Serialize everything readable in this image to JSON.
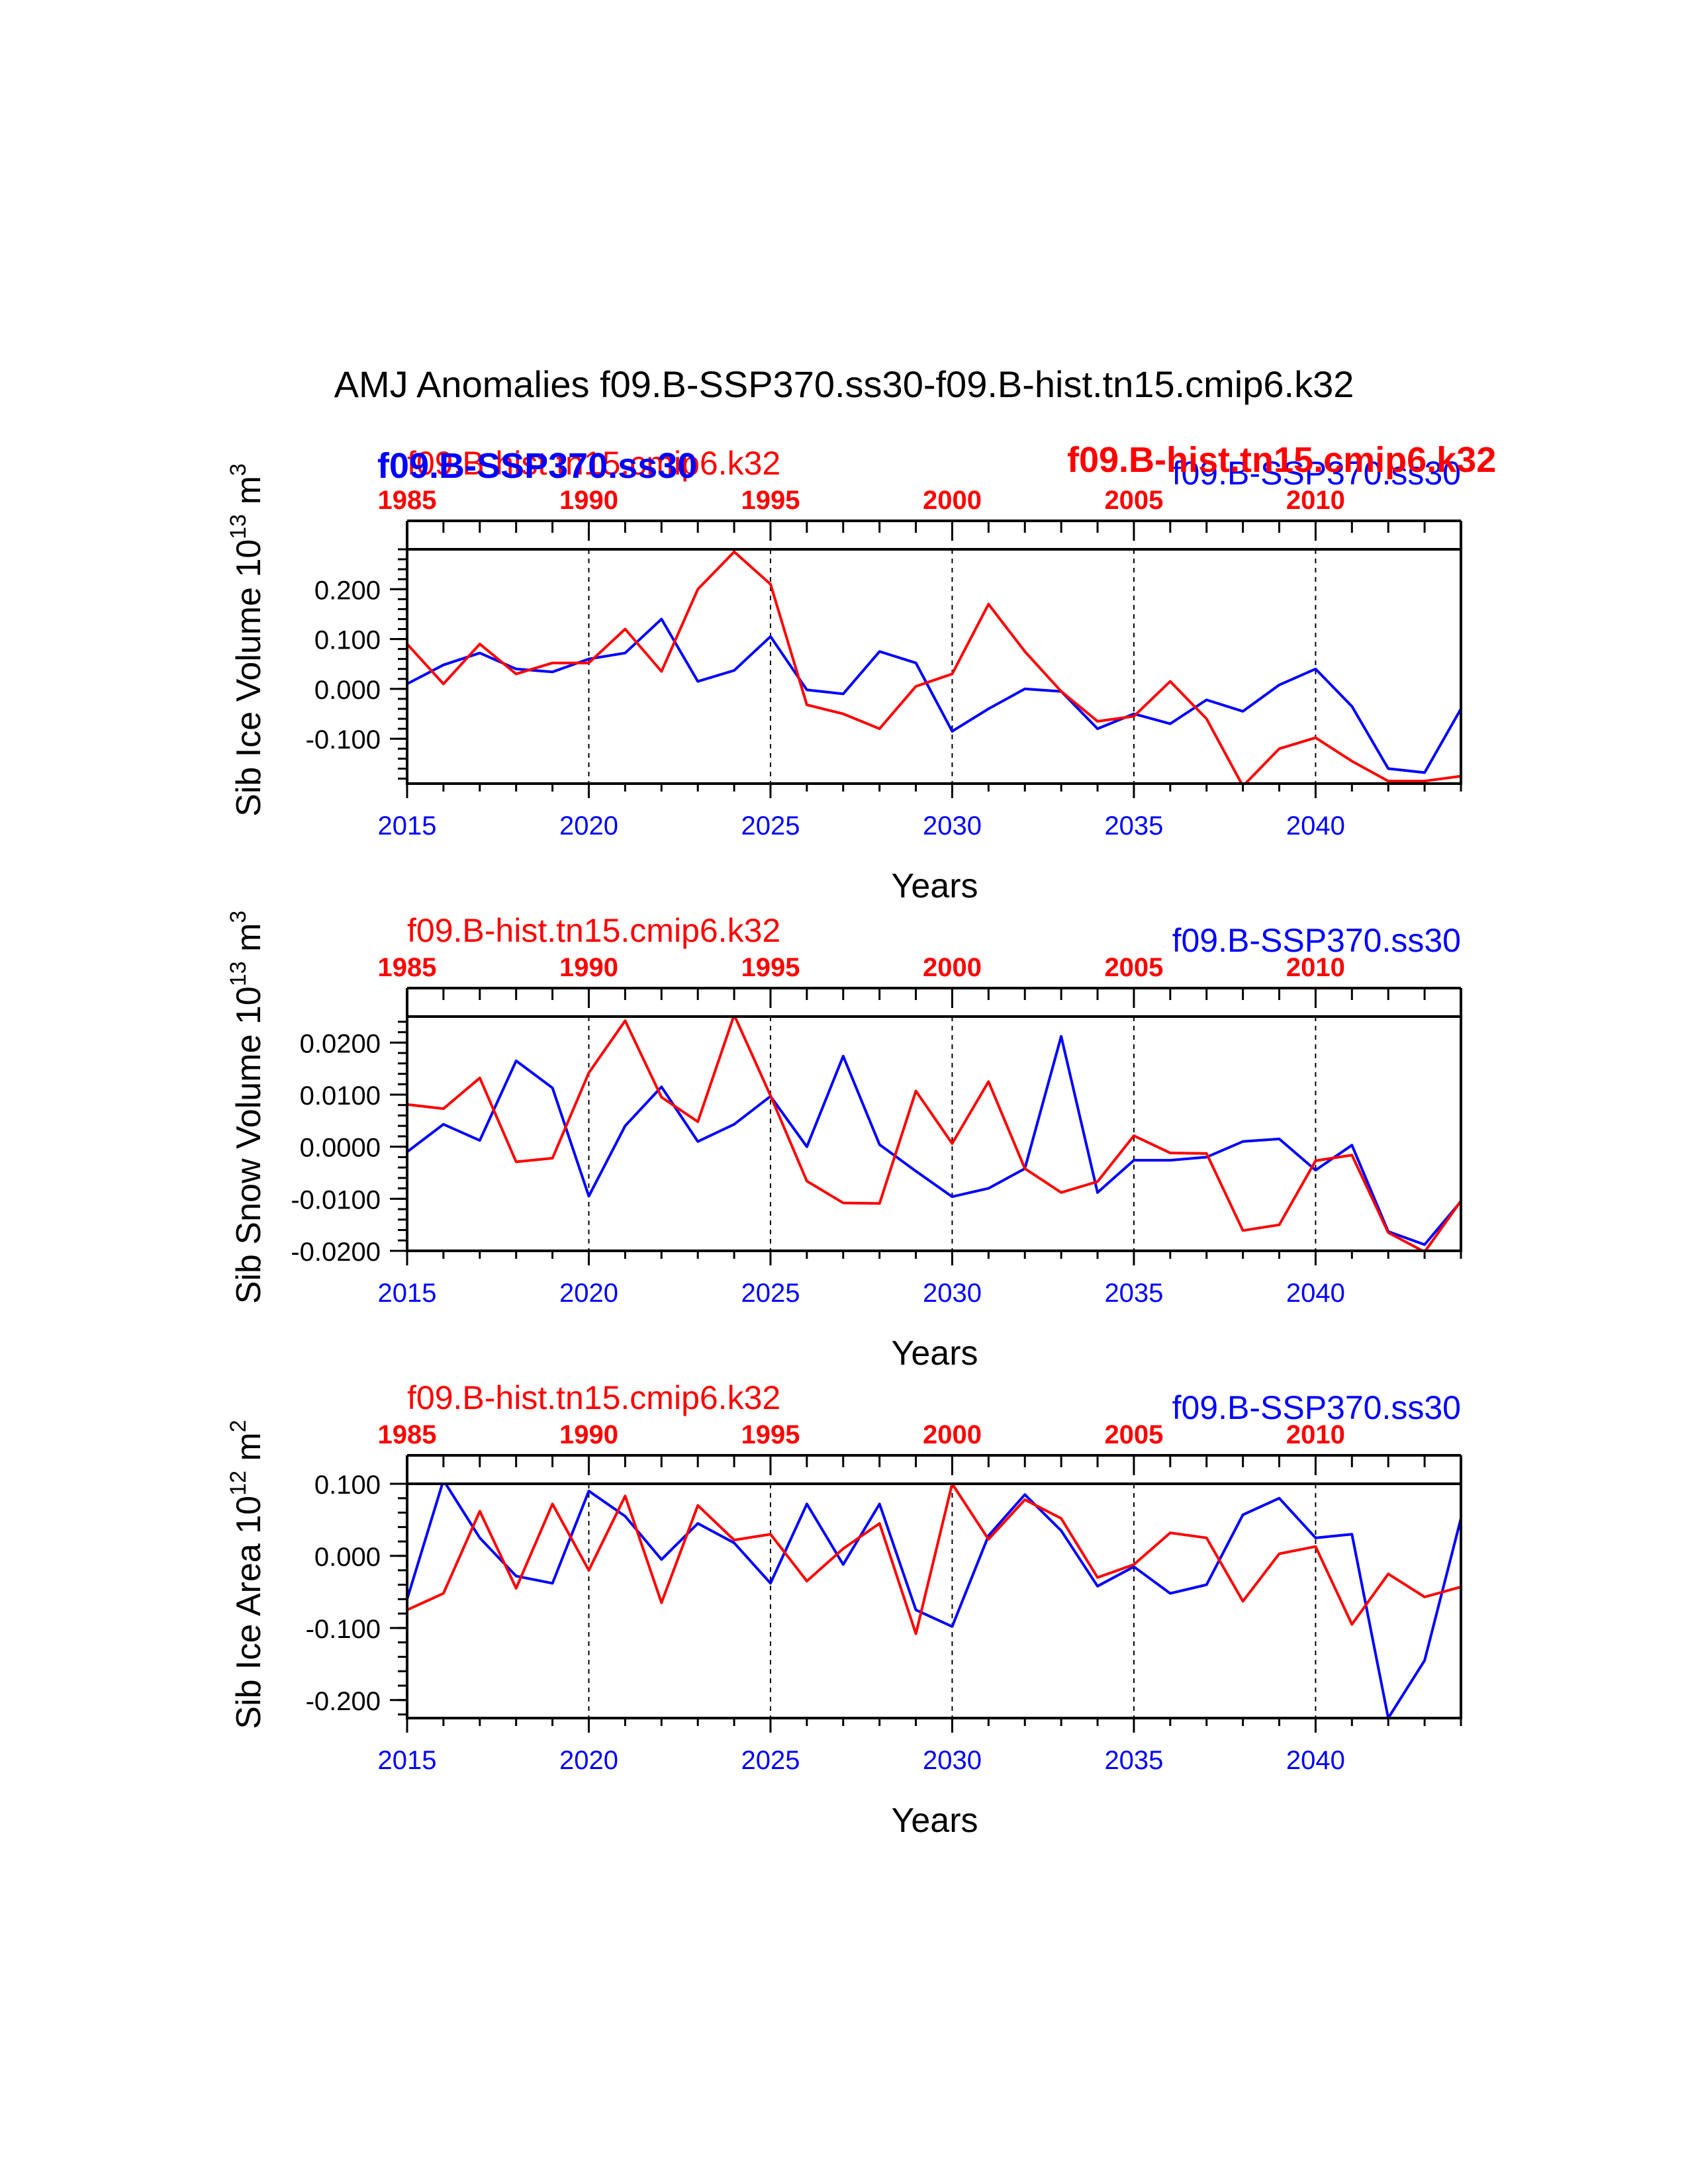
{
  "title": "AMJ Anomalies f09.B-SSP370.ss30-f09.B-hist.tn15.cmip6.k32",
  "colors": {
    "ssp": "#0000ff",
    "hist": "#ff0000",
    "axis": "#000000"
  },
  "overlay_labels": {
    "ssp_bold": "f09.B-SSP370.ss30",
    "hist_bold": "f09.B-hist.tn15.cmip6.k32"
  },
  "chart_data": [
    {
      "type": "line",
      "ylabel": "Sib Ice Volume 10",
      "ylabel_exp": "13",
      "ylabel_unit": " m",
      "ylabel_unit_exp": "3",
      "xlabel": "Years",
      "top_left_label": "f09.B-hist.tn15.cmip6.k32",
      "top_right_label": "f09.B-SSP370.ss30",
      "ylim": [
        -0.19,
        0.28
      ],
      "yticks": [
        0.2,
        0.1,
        0.0,
        -0.1
      ],
      "ytick_labels": [
        "0.200",
        "0.100",
        "0.000",
        "-0.100"
      ],
      "yminor_step": 0.02,
      "xlim": [
        2015,
        2044
      ],
      "bottom_ticks": [
        2015,
        2020,
        2025,
        2030,
        2035,
        2040
      ],
      "bottom_tick_labels": [
        "2015",
        "2020",
        "2025",
        "2030",
        "2035",
        "2040"
      ],
      "top_ticks": [
        2015,
        2020,
        2025,
        2030,
        2035,
        2040
      ],
      "top_tick_labels": [
        "1985",
        "1990",
        "1995",
        "2000",
        "2005",
        "2010"
      ],
      "gridlines_x": [
        2020,
        2025,
        2030,
        2035,
        2040
      ],
      "x": [
        2015,
        2016,
        2017,
        2018,
        2019,
        2020,
        2021,
        2022,
        2023,
        2024,
        2025,
        2026,
        2027,
        2028,
        2029,
        2030,
        2031,
        2032,
        2033,
        2034,
        2035,
        2036,
        2037,
        2038,
        2039,
        2040,
        2041,
        2042,
        2043,
        2044
      ],
      "series": [
        {
          "name": "f09.B-SSP370.ss30",
          "color": "#0000ff",
          "values": [
            0.01,
            0.048,
            0.072,
            0.04,
            0.034,
            0.06,
            0.072,
            0.14,
            0.015,
            0.037,
            0.105,
            -0.002,
            -0.01,
            0.075,
            0.052,
            -0.085,
            -0.04,
            0.0,
            -0.005,
            -0.08,
            -0.05,
            -0.07,
            -0.022,
            -0.045,
            0.008,
            0.04,
            -0.035,
            -0.16,
            -0.168,
            -0.04
          ]
        },
        {
          "name": "f09.B-hist.tn15.cmip6.k32",
          "color": "#ff0000",
          "values": [
            0.09,
            0.01,
            0.09,
            0.03,
            0.052,
            0.052,
            0.12,
            0.035,
            0.2,
            0.275,
            0.21,
            -0.032,
            -0.05,
            -0.08,
            0.005,
            0.03,
            0.17,
            0.075,
            -0.005,
            -0.065,
            -0.055,
            0.015,
            -0.06,
            -0.195,
            -0.12,
            -0.098,
            -0.145,
            -0.185,
            -0.185,
            -0.175
          ]
        }
      ]
    },
    {
      "type": "line",
      "ylabel": "Sib Snow Volume 10",
      "ylabel_exp": "13",
      "ylabel_unit": " m",
      "ylabel_unit_exp": "3",
      "xlabel": "Years",
      "top_left_label": "f09.B-hist.tn15.cmip6.k32",
      "top_right_label": "f09.B-SSP370.ss30",
      "ylim": [
        -0.02,
        0.025
      ],
      "yticks": [
        0.02,
        0.01,
        0.0,
        -0.01,
        -0.02
      ],
      "ytick_labels": [
        "0.0200",
        "0.0100",
        "0.0000",
        "-0.0100",
        "-0.0200"
      ],
      "yminor_step": 0.002,
      "xlim": [
        2015,
        2044
      ],
      "bottom_ticks": [
        2015,
        2020,
        2025,
        2030,
        2035,
        2040
      ],
      "bottom_tick_labels": [
        "2015",
        "2020",
        "2025",
        "2030",
        "2035",
        "2040"
      ],
      "top_ticks": [
        2015,
        2020,
        2025,
        2030,
        2035,
        2040
      ],
      "top_tick_labels": [
        "1985",
        "1990",
        "1995",
        "2000",
        "2005",
        "2010"
      ],
      "gridlines_x": [
        2020,
        2025,
        2030,
        2035,
        2040
      ],
      "x": [
        2015,
        2016,
        2017,
        2018,
        2019,
        2020,
        2021,
        2022,
        2023,
        2024,
        2025,
        2026,
        2027,
        2028,
        2029,
        2030,
        2031,
        2032,
        2033,
        2034,
        2035,
        2036,
        2037,
        2038,
        2039,
        2040,
        2041,
        2042,
        2043,
        2044
      ],
      "series": [
        {
          "name": "f09.B-SSP370.ss30",
          "color": "#0000ff",
          "values": [
            -0.001,
            0.0043,
            0.0012,
            0.0165,
            0.0113,
            -0.0095,
            0.004,
            0.0115,
            0.001,
            0.0043,
            0.0097,
            0.0,
            0.0174,
            0.0004,
            -0.0047,
            -0.0096,
            -0.008,
            -0.0042,
            0.0212,
            -0.0088,
            -0.0026,
            -0.0026,
            -0.002,
            0.001,
            0.0015,
            -0.0045,
            0.0003,
            -0.0163,
            -0.0188,
            -0.0105
          ]
        },
        {
          "name": "f09.B-hist.tn15.cmip6.k32",
          "color": "#ff0000",
          "values": [
            0.0081,
            0.0073,
            0.0132,
            -0.0029,
            -0.0022,
            0.0142,
            0.0242,
            0.0095,
            0.0048,
            0.0253,
            0.0098,
            -0.0066,
            -0.0108,
            -0.0109,
            0.0107,
            0.0006,
            0.0125,
            -0.0042,
            -0.0088,
            -0.0067,
            0.0021,
            -0.0012,
            -0.0013,
            -0.0161,
            -0.015,
            -0.0027,
            -0.0016,
            -0.0165,
            -0.0202,
            -0.0104
          ]
        }
      ]
    },
    {
      "type": "line",
      "ylabel": "Sib Ice Area 10",
      "ylabel_exp": "12",
      "ylabel_unit": " m",
      "ylabel_unit_exp": "2",
      "xlabel": "Years",
      "top_left_label": "f09.B-hist.tn15.cmip6.k32",
      "top_right_label": "f09.B-SSP370.ss30",
      "ylim": [
        -0.225,
        0.1
      ],
      "yticks": [
        0.1,
        0.0,
        -0.1,
        -0.2
      ],
      "ytick_labels": [
        "0.100",
        "0.000",
        "-0.100",
        "-0.200"
      ],
      "yminor_step": 0.02,
      "xlim": [
        2015,
        2044
      ],
      "bottom_ticks": [
        2015,
        2020,
        2025,
        2030,
        2035,
        2040
      ],
      "bottom_tick_labels": [
        "2015",
        "2020",
        "2025",
        "2030",
        "2035",
        "2040"
      ],
      "top_ticks": [
        2015,
        2020,
        2025,
        2030,
        2035,
        2040
      ],
      "top_tick_labels": [
        "1985",
        "1990",
        "1995",
        "2000",
        "2005",
        "2010"
      ],
      "gridlines_x": [
        2020,
        2025,
        2030,
        2035,
        2040
      ],
      "x": [
        2015,
        2016,
        2017,
        2018,
        2019,
        2020,
        2021,
        2022,
        2023,
        2024,
        2025,
        2026,
        2027,
        2028,
        2029,
        2030,
        2031,
        2032,
        2033,
        2034,
        2035,
        2036,
        2037,
        2038,
        2039,
        2040,
        2041,
        2042,
        2043,
        2044
      ],
      "series": [
        {
          "name": "f09.B-SSP370.ss30",
          "color": "#0000ff",
          "values": [
            -0.06,
            0.105,
            0.025,
            -0.028,
            -0.038,
            0.09,
            0.055,
            -0.005,
            0.045,
            0.018,
            -0.038,
            0.072,
            -0.012,
            0.072,
            -0.075,
            -0.098,
            0.028,
            0.085,
            0.035,
            -0.042,
            -0.015,
            -0.052,
            -0.04,
            0.057,
            0.08,
            0.025,
            0.03,
            -0.225,
            -0.145,
            0.052
          ]
        },
        {
          "name": "f09.B-hist.tn15.cmip6.k32",
          "color": "#ff0000",
          "values": [
            -0.075,
            -0.052,
            0.062,
            -0.045,
            0.072,
            -0.02,
            0.083,
            -0.065,
            0.07,
            0.022,
            0.03,
            -0.035,
            0.01,
            0.045,
            -0.108,
            0.1,
            0.023,
            0.078,
            0.052,
            -0.03,
            -0.012,
            0.032,
            0.025,
            -0.063,
            0.003,
            0.013,
            -0.095,
            -0.025,
            -0.057,
            -0.043
          ]
        }
      ]
    }
  ]
}
